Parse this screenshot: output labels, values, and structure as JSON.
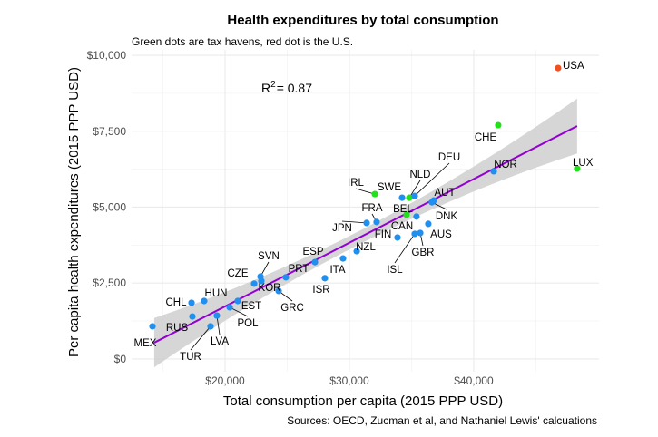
{
  "chart_data": {
    "type": "scatter",
    "title": "Health expenditures by total consumption",
    "subtitle": "Green dots are tax havens, red dot is the U.S.",
    "xlabel": "Total consumption per capita (2015 PPP USD)",
    "ylabel": "Per capita health expenditures (2015 PPP USD)",
    "caption": "Sources: OECD, Zucman et al, and Nathaniel Lewis' calcuations",
    "annotation": {
      "r2_label": "R",
      "r2_sup": "2",
      "r2_value": "= 0.87"
    },
    "xlim": [
      12480,
      50080
    ],
    "ylim": [
      -420,
      10180
    ],
    "x_ticks": [
      {
        "value": 20000,
        "label": "$20,000"
      },
      {
        "value": 30000,
        "label": "$30,000"
      },
      {
        "value": 40000,
        "label": "$40,000"
      }
    ],
    "y_ticks": [
      {
        "value": 0,
        "label": "$0"
      },
      {
        "value": 2500,
        "label": "$2,500"
      },
      {
        "value": 5000,
        "label": "$5,000"
      },
      {
        "value": 7500,
        "label": "$7,500"
      },
      {
        "value": 10000,
        "label": "$10,000"
      }
    ],
    "grid": true,
    "colors": {
      "normal": "#1f8ff0",
      "tax_haven": "#22e01a",
      "us": "#f2501e",
      "fit": "#9400d3",
      "band": "#cfcfcf"
    },
    "fit_line": {
      "x": [
        14300,
        48320
      ],
      "y": [
        537,
        7670
      ]
    },
    "points": [
      {
        "code": "MEX",
        "x": 14160,
        "y": 1075,
        "group": "normal"
      },
      {
        "code": "RUS",
        "x": 17370,
        "y": 1400,
        "group": "normal"
      },
      {
        "code": "CHL",
        "x": 17300,
        "y": 1850,
        "group": "normal"
      },
      {
        "code": "HUN",
        "x": 18320,
        "y": 1910,
        "group": "normal"
      },
      {
        "code": "TUR",
        "x": 18830,
        "y": 1075,
        "group": "normal"
      },
      {
        "code": "LVA",
        "x": 19340,
        "y": 1430,
        "group": "normal"
      },
      {
        "code": "POL",
        "x": 20370,
        "y": 1700,
        "group": "normal"
      },
      {
        "code": "EST",
        "x": 21020,
        "y": 1910,
        "group": "normal"
      },
      {
        "code": "CZE",
        "x": 22340,
        "y": 2480,
        "group": "normal"
      },
      {
        "code": "SVN",
        "x": 22850,
        "y": 2715,
        "group": "normal"
      },
      {
        "code": "KOR",
        "x": 22920,
        "y": 2570,
        "group": "normal"
      },
      {
        "code": "GRC",
        "x": 24310,
        "y": 2240,
        "group": "normal"
      },
      {
        "code": "PRT",
        "x": 24890,
        "y": 2690,
        "group": "normal"
      },
      {
        "code": "ESP",
        "x": 27230,
        "y": 3190,
        "group": "normal"
      },
      {
        "code": "ISR",
        "x": 28030,
        "y": 2660,
        "group": "normal"
      },
      {
        "code": "ITA",
        "x": 29490,
        "y": 3310,
        "group": "normal"
      },
      {
        "code": "NZL",
        "x": 30590,
        "y": 3550,
        "group": "normal"
      },
      {
        "code": "JPN",
        "x": 31390,
        "y": 4480,
        "group": "normal"
      },
      {
        "code": "FRA",
        "x": 32190,
        "y": 4510,
        "group": "normal"
      },
      {
        "code": "IRL",
        "x": 32050,
        "y": 5430,
        "group": "tax_haven"
      },
      {
        "code": "FIN",
        "x": 33870,
        "y": 4000,
        "group": "normal"
      },
      {
        "code": "SWE",
        "x": 34240,
        "y": 5310,
        "group": "normal"
      },
      {
        "code": "NLD",
        "x": 34820,
        "y": 5310,
        "group": "tax_haven"
      },
      {
        "code": "DEU",
        "x": 35260,
        "y": 5370,
        "group": "normal"
      },
      {
        "code": "BEL",
        "x": 34600,
        "y": 4750,
        "group": "tax_haven"
      },
      {
        "code": "CAN",
        "x": 35400,
        "y": 4690,
        "group": "normal"
      },
      {
        "code": "DNK",
        "x": 36640,
        "y": 5160,
        "group": "normal"
      },
      {
        "code": "AUT",
        "x": 36790,
        "y": 5220,
        "group": "normal"
      },
      {
        "code": "AUS",
        "x": 36350,
        "y": 4450,
        "group": "normal"
      },
      {
        "code": "ISL",
        "x": 35260,
        "y": 4120,
        "group": "normal"
      },
      {
        "code": "GBR",
        "x": 35700,
        "y": 4150,
        "group": "normal"
      },
      {
        "code": "NOR",
        "x": 41610,
        "y": 6180,
        "group": "normal"
      },
      {
        "code": "CHE",
        "x": 41970,
        "y": 7700,
        "group": "tax_haven"
      },
      {
        "code": "LUX",
        "x": 48320,
        "y": 6270,
        "group": "tax_haven"
      },
      {
        "code": "USA",
        "x": 46790,
        "y": 9580,
        "group": "us"
      }
    ]
  }
}
